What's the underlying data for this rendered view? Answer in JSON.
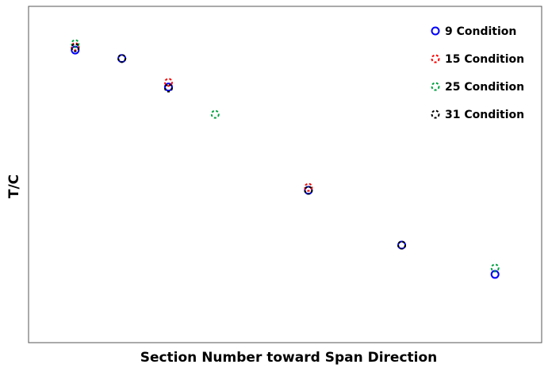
{
  "chart_data": {
    "type": "scatter",
    "xlabel": "Section Number toward Span Direction",
    "ylabel": "T/C",
    "x": [
      1,
      2,
      3,
      4,
      6,
      8,
      10
    ],
    "xlim": [
      0,
      11
    ],
    "ylim": [
      0,
      1
    ],
    "legend": "upper right",
    "series": [
      {
        "name": "9 Condition",
        "color": "#0000ff",
        "dashed": false,
        "values": [
          0.87,
          0.845,
          0.76,
          null,
          0.453,
          0.29,
          0.203
        ]
      },
      {
        "name": "15 Condition",
        "color": "#ff0000",
        "dashed": true,
        "values": [
          0.88,
          0.845,
          0.774,
          null,
          0.462,
          0.29,
          null
        ]
      },
      {
        "name": "25 Condition",
        "color": "#00a040",
        "dashed": true,
        "values": [
          0.889,
          0.845,
          null,
          0.679,
          0.453,
          0.29,
          0.222
        ]
      },
      {
        "name": "31 Condition",
        "color": "#000000",
        "dashed": true,
        "values": [
          0.877,
          0.845,
          0.757,
          null,
          0.453,
          0.29,
          null
        ]
      }
    ]
  }
}
